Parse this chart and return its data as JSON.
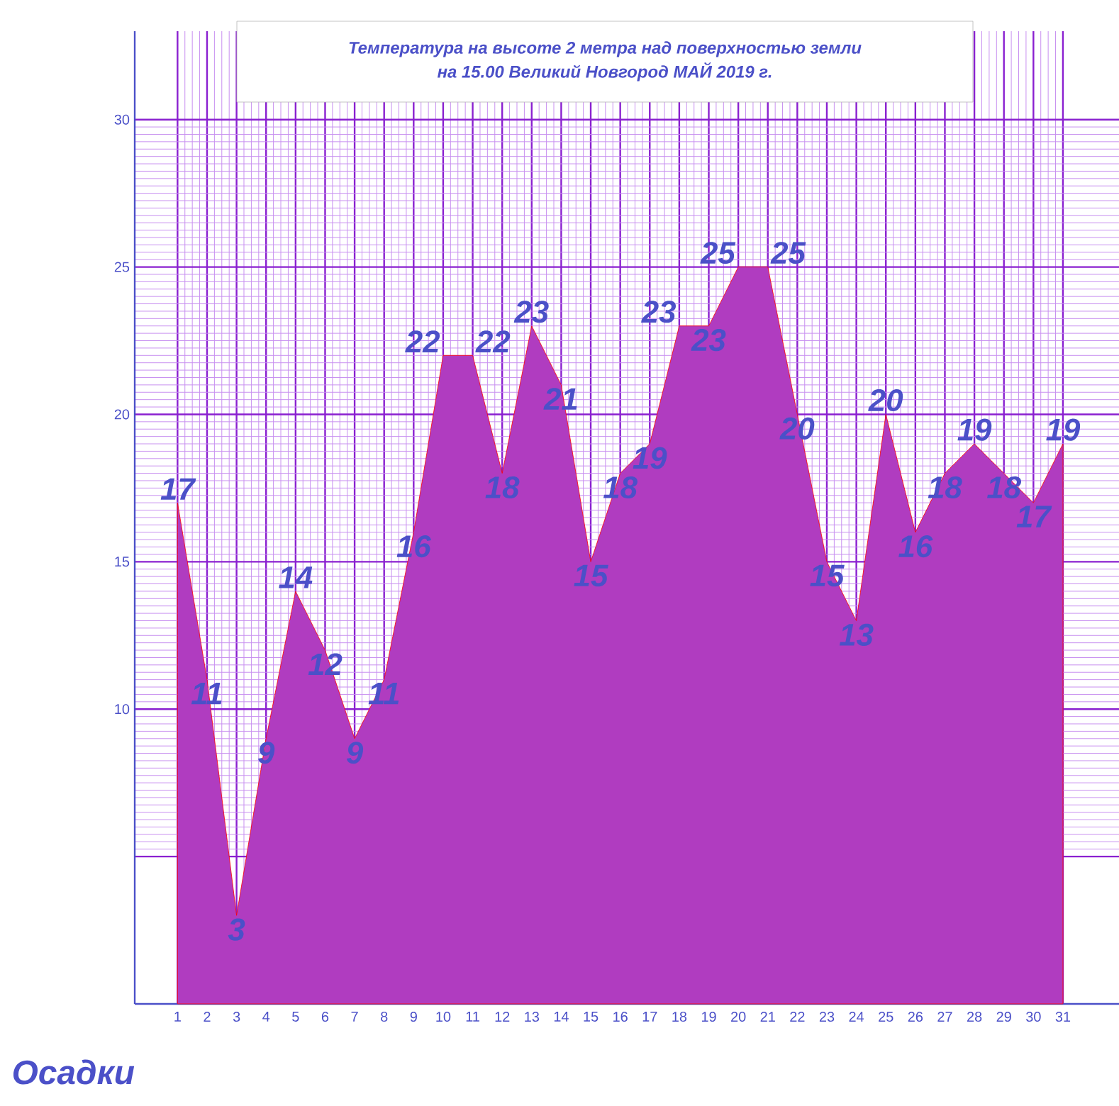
{
  "chart_data": {
    "type": "area",
    "title": "Температура на высоте 2 метра над поверхностью земли",
    "subtitle": "на 15.00 Великий Новгород МАЙ 2019 г.",
    "categories": [
      "1",
      "2",
      "3",
      "4",
      "5",
      "6",
      "7",
      "8",
      "9",
      "10",
      "11",
      "12",
      "13",
      "14",
      "15",
      "16",
      "17",
      "18",
      "19",
      "20",
      "21",
      "22",
      "23",
      "24",
      "25",
      "26",
      "27",
      "28",
      "29",
      "30",
      "31"
    ],
    "values": [
      17,
      11,
      3,
      9,
      14,
      12,
      9,
      11,
      16,
      22,
      22,
      18,
      23,
      21,
      15,
      18,
      19,
      23,
      23,
      25,
      25,
      20,
      15,
      13,
      20,
      16,
      18,
      19,
      18,
      17,
      19
    ],
    "color": "#b03cc0",
    "ylim": [
      0,
      33
    ],
    "yticks": [
      {
        "value": 5,
        "label": null
      },
      10,
      15,
      20,
      25,
      30
    ],
    "grid": true,
    "data_labels": true,
    "annotations": [
      "Осадки"
    ]
  }
}
